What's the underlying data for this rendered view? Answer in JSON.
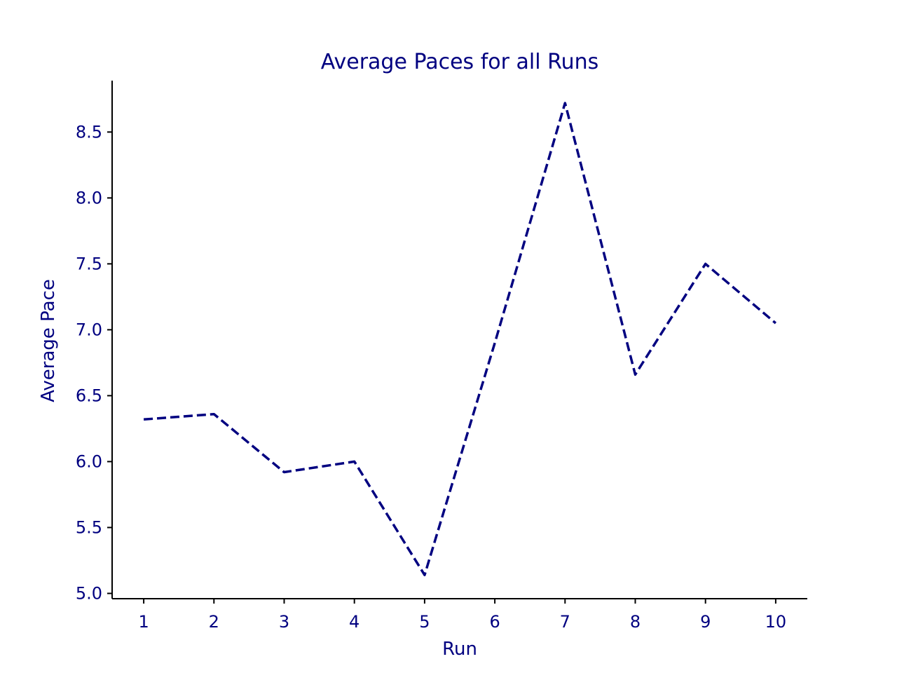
{
  "chart_data": {
    "type": "line",
    "title": "Average Paces for all Runs",
    "xlabel": "Run",
    "ylabel": "Average Pace",
    "x": [
      1,
      2,
      3,
      4,
      5,
      6,
      7,
      8,
      9,
      10
    ],
    "series": [
      {
        "values": [
          6.32,
          6.36,
          5.92,
          6.0,
          5.14,
          6.9,
          8.72,
          6.66,
          7.5,
          7.05
        ]
      }
    ],
    "xlim": [
      0.55,
      10.45
    ],
    "ylim": [
      4.96,
      8.89
    ],
    "xticks": [
      1,
      2,
      3,
      4,
      5,
      6,
      7,
      8,
      9,
      10
    ],
    "yticks": [
      5.0,
      5.5,
      6.0,
      6.5,
      7.0,
      7.5,
      8.0,
      8.5
    ],
    "ytick_labels": [
      "5.0",
      "5.5",
      "6.0",
      "6.5",
      "7.0",
      "7.5",
      "8.0",
      "8.5"
    ],
    "grid": false,
    "line_style": "dashed",
    "color": "#000080",
    "text_color": "#000080"
  }
}
